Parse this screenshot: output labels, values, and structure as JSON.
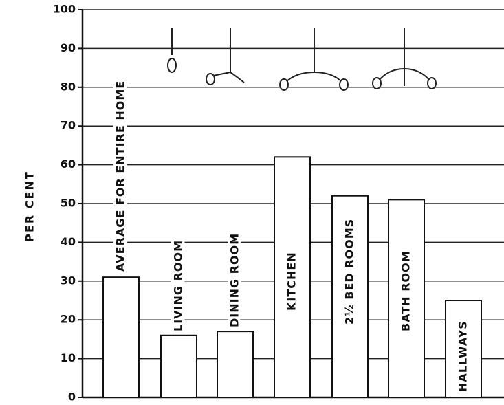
{
  "chart_data": {
    "type": "bar",
    "y_label": "PER CENT",
    "categories": [
      "AVERAGE FOR ENTIRE HOME",
      "LIVING ROOM",
      "DINING ROOM",
      "KITCHEN",
      "2½ BED ROOMS",
      "BATH ROOM",
      "HALLWAYS"
    ],
    "values": [
      31,
      16,
      17,
      62,
      52,
      51,
      25
    ],
    "color": "#ffffff",
    "ylim": [
      0,
      100
    ],
    "yticks": [
      0,
      10,
      20,
      30,
      40,
      50,
      60,
      70,
      80,
      90,
      100
    ],
    "grid": true
  }
}
